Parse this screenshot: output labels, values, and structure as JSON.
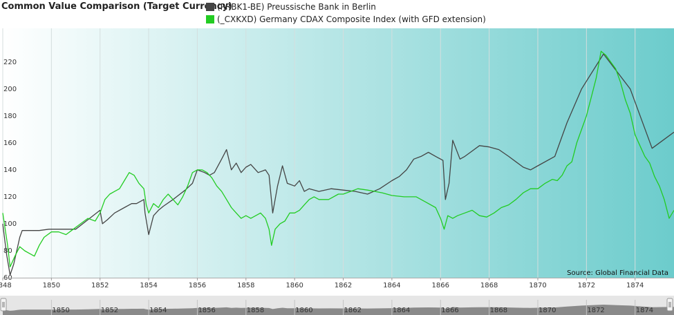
{
  "chart_data": {
    "type": "line",
    "title": "Common Value Comparison (Target Currency)",
    "source": "Source: Global Financial Data",
    "xlim": [
      1848,
      1875.6
    ],
    "ylim": [
      60,
      245
    ],
    "x_ticks": [
      1848,
      1850,
      1852,
      1854,
      1856,
      1858,
      1860,
      1862,
      1864,
      1866,
      1868,
      1870,
      1872,
      1874
    ],
    "x_tick_labels": [
      "1848",
      "1850",
      "1852",
      "1854",
      "1856",
      "1858",
      "1860",
      "1862",
      "1864",
      "1866",
      "1868",
      "1870",
      "1872",
      "1874"
    ],
    "y_ticks": [
      60,
      80,
      100,
      120,
      140,
      160,
      180,
      200,
      220
    ],
    "y_tick_labels": [
      "60",
      "80",
      "100",
      "120",
      "140",
      "160",
      "180",
      "200",
      "220"
    ],
    "navigator_labels": [
      "1850",
      "1852",
      "1854",
      "1856",
      "1858",
      "1860",
      "1862",
      "1864",
      "1866",
      "1868",
      "1870",
      "1872",
      "1874"
    ],
    "colors": {
      "bg_left": "#ffffff",
      "bg_right": "#6ccccc",
      "navigator_fill": "#8a8a8a",
      "navigator_bg": "#e6e6e6"
    },
    "series": [
      {
        "name": "(PRBK1-BE) Preussische Bank in Berlin",
        "color": "#444444",
        "points": [
          [
            1848.0,
            100
          ],
          [
            1848.15,
            78
          ],
          [
            1848.3,
            62
          ],
          [
            1848.45,
            70
          ],
          [
            1848.6,
            82
          ],
          [
            1848.7,
            90
          ],
          [
            1848.8,
            95
          ],
          [
            1849.0,
            95
          ],
          [
            1849.5,
            95
          ],
          [
            1849.9,
            96
          ],
          [
            1850.5,
            96
          ],
          [
            1851.0,
            96
          ],
          [
            1851.5,
            103
          ],
          [
            1852.0,
            110
          ],
          [
            1852.1,
            100
          ],
          [
            1852.3,
            103
          ],
          [
            1852.6,
            108
          ],
          [
            1853.0,
            112
          ],
          [
            1853.3,
            115
          ],
          [
            1853.5,
            115
          ],
          [
            1853.8,
            118
          ],
          [
            1853.85,
            108
          ],
          [
            1854.0,
            92
          ],
          [
            1854.2,
            106
          ],
          [
            1854.4,
            110
          ],
          [
            1854.6,
            113
          ],
          [
            1855.0,
            118
          ],
          [
            1855.5,
            125
          ],
          [
            1855.8,
            130
          ],
          [
            1856.0,
            140
          ],
          [
            1856.3,
            138
          ],
          [
            1856.5,
            136
          ],
          [
            1856.7,
            138
          ],
          [
            1857.0,
            148
          ],
          [
            1857.2,
            155
          ],
          [
            1857.4,
            140
          ],
          [
            1857.6,
            145
          ],
          [
            1857.8,
            138
          ],
          [
            1858.0,
            142
          ],
          [
            1858.2,
            144
          ],
          [
            1858.5,
            138
          ],
          [
            1858.8,
            140
          ],
          [
            1858.95,
            136
          ],
          [
            1859.1,
            108
          ],
          [
            1859.3,
            128
          ],
          [
            1859.5,
            143
          ],
          [
            1859.7,
            130
          ],
          [
            1860.0,
            128
          ],
          [
            1860.2,
            132
          ],
          [
            1860.4,
            124
          ],
          [
            1860.6,
            126
          ],
          [
            1861.0,
            124
          ],
          [
            1861.5,
            126
          ],
          [
            1862.0,
            125
          ],
          [
            1862.5,
            124
          ],
          [
            1863.0,
            122
          ],
          [
            1863.5,
            126
          ],
          [
            1864.0,
            132
          ],
          [
            1864.3,
            135
          ],
          [
            1864.6,
            140
          ],
          [
            1864.9,
            148
          ],
          [
            1865.2,
            150
          ],
          [
            1865.5,
            153
          ],
          [
            1865.8,
            150
          ],
          [
            1866.1,
            147
          ],
          [
            1866.2,
            118
          ],
          [
            1866.35,
            130
          ],
          [
            1866.5,
            162
          ],
          [
            1866.8,
            148
          ],
          [
            1867.0,
            150
          ],
          [
            1867.3,
            154
          ],
          [
            1867.6,
            158
          ],
          [
            1868.0,
            157
          ],
          [
            1868.4,
            155
          ],
          [
            1868.8,
            150
          ],
          [
            1869.1,
            146
          ],
          [
            1869.4,
            142
          ],
          [
            1869.7,
            140
          ],
          [
            1870.0,
            143
          ],
          [
            1870.7,
            150
          ],
          [
            1871.2,
            175
          ],
          [
            1871.8,
            200
          ],
          [
            1872.7,
            226
          ],
          [
            1873.8,
            200
          ],
          [
            1874.7,
            156
          ],
          [
            1875.6,
            168
          ]
        ]
      },
      {
        "name": "(_CXKXD) Germany CDAX Composite Index (with GFD extension)",
        "color": "#22cc22",
        "points": [
          [
            1848.0,
            108
          ],
          [
            1848.2,
            84
          ],
          [
            1848.3,
            68
          ],
          [
            1848.5,
            76
          ],
          [
            1848.7,
            83
          ],
          [
            1848.9,
            80
          ],
          [
            1849.1,
            78
          ],
          [
            1849.3,
            76
          ],
          [
            1849.5,
            84
          ],
          [
            1849.7,
            90
          ],
          [
            1850.0,
            94
          ],
          [
            1850.3,
            94
          ],
          [
            1850.6,
            92
          ],
          [
            1850.9,
            96
          ],
          [
            1851.2,
            100
          ],
          [
            1851.5,
            104
          ],
          [
            1851.8,
            102
          ],
          [
            1852.0,
            108
          ],
          [
            1852.2,
            118
          ],
          [
            1852.4,
            122
          ],
          [
            1852.6,
            124
          ],
          [
            1852.8,
            126
          ],
          [
            1853.0,
            132
          ],
          [
            1853.2,
            138
          ],
          [
            1853.4,
            136
          ],
          [
            1853.6,
            130
          ],
          [
            1853.8,
            126
          ],
          [
            1853.9,
            114
          ],
          [
            1854.0,
            108
          ],
          [
            1854.2,
            115
          ],
          [
            1854.4,
            112
          ],
          [
            1854.6,
            118
          ],
          [
            1854.8,
            122
          ],
          [
            1855.0,
            118
          ],
          [
            1855.2,
            114
          ],
          [
            1855.4,
            120
          ],
          [
            1855.6,
            128
          ],
          [
            1855.8,
            138
          ],
          [
            1856.0,
            140
          ],
          [
            1856.2,
            140
          ],
          [
            1856.4,
            138
          ],
          [
            1856.6,
            134
          ],
          [
            1856.8,
            128
          ],
          [
            1857.0,
            124
          ],
          [
            1857.2,
            118
          ],
          [
            1857.4,
            112
          ],
          [
            1857.6,
            108
          ],
          [
            1857.8,
            104
          ],
          [
            1858.0,
            106
          ],
          [
            1858.2,
            104
          ],
          [
            1858.4,
            106
          ],
          [
            1858.6,
            108
          ],
          [
            1858.8,
            104
          ],
          [
            1858.95,
            96
          ],
          [
            1859.05,
            84
          ],
          [
            1859.2,
            96
          ],
          [
            1859.4,
            100
          ],
          [
            1859.6,
            102
          ],
          [
            1859.8,
            108
          ],
          [
            1860.0,
            108
          ],
          [
            1860.2,
            110
          ],
          [
            1860.4,
            114
          ],
          [
            1860.6,
            118
          ],
          [
            1860.8,
            120
          ],
          [
            1861.0,
            118
          ],
          [
            1861.4,
            118
          ],
          [
            1861.8,
            122
          ],
          [
            1862.0,
            122
          ],
          [
            1862.3,
            124
          ],
          [
            1862.6,
            126
          ],
          [
            1863.0,
            125
          ],
          [
            1863.3,
            124
          ],
          [
            1863.6,
            123
          ],
          [
            1864.0,
            121
          ],
          [
            1864.5,
            120
          ],
          [
            1865.0,
            120
          ],
          [
            1865.4,
            116
          ],
          [
            1865.8,
            112
          ],
          [
            1866.0,
            104
          ],
          [
            1866.15,
            96
          ],
          [
            1866.3,
            106
          ],
          [
            1866.5,
            104
          ],
          [
            1866.7,
            106
          ],
          [
            1867.0,
            108
          ],
          [
            1867.3,
            110
          ],
          [
            1867.6,
            106
          ],
          [
            1867.9,
            105
          ],
          [
            1868.2,
            108
          ],
          [
            1868.5,
            112
          ],
          [
            1868.8,
            114
          ],
          [
            1869.1,
            118
          ],
          [
            1869.4,
            123
          ],
          [
            1869.7,
            126
          ],
          [
            1870.0,
            126
          ],
          [
            1870.3,
            130
          ],
          [
            1870.6,
            133
          ],
          [
            1870.8,
            132
          ],
          [
            1871.0,
            136
          ],
          [
            1871.2,
            143
          ],
          [
            1871.4,
            146
          ],
          [
            1871.6,
            160
          ],
          [
            1871.8,
            170
          ],
          [
            1872.0,
            180
          ],
          [
            1872.2,
            194
          ],
          [
            1872.4,
            208
          ],
          [
            1872.6,
            228
          ],
          [
            1872.8,
            225
          ],
          [
            1873.0,
            220
          ],
          [
            1873.2,
            215
          ],
          [
            1873.4,
            205
          ],
          [
            1873.6,
            192
          ],
          [
            1873.8,
            182
          ],
          [
            1874.0,
            166
          ],
          [
            1874.2,
            158
          ],
          [
            1874.4,
            150
          ],
          [
            1874.6,
            145
          ],
          [
            1874.8,
            135
          ],
          [
            1875.0,
            128
          ],
          [
            1875.2,
            118
          ],
          [
            1875.4,
            104
          ],
          [
            1875.6,
            110
          ]
        ]
      }
    ]
  }
}
